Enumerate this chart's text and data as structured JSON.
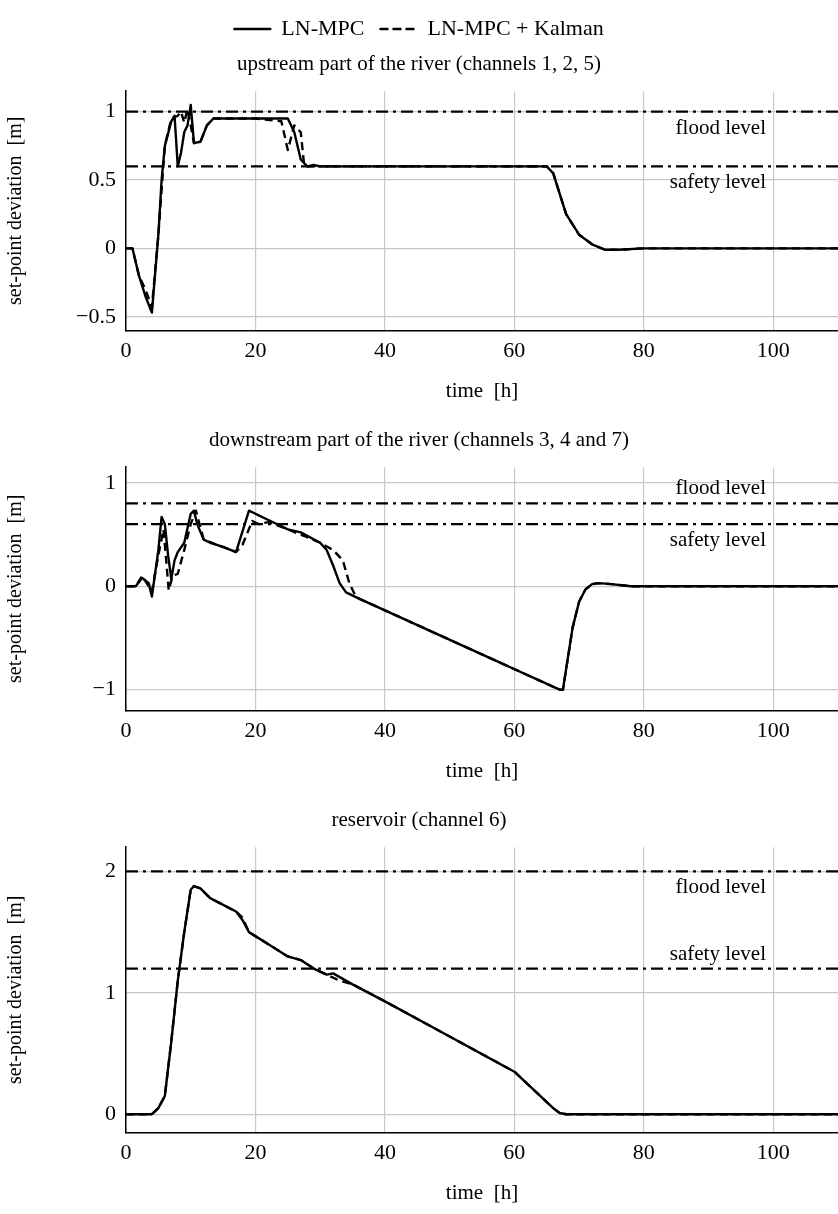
{
  "chart_data": [
    {
      "type": "line",
      "title": "upstream part of the river (channels 1, 2, 5)",
      "xlabel": "time  [h]",
      "ylabel": "set-point deviation  [m]",
      "xlim": [
        0,
        110
      ],
      "xticks": [
        0,
        20,
        40,
        60,
        80,
        100
      ],
      "ylim": [
        -0.6,
        1.15
      ],
      "yticks": [
        -0.5,
        0,
        0.5,
        1
      ],
      "grid": true,
      "legend": "top",
      "marker": "none",
      "ref_lines": [
        {
          "axis": "y",
          "value": 1,
          "label": "flood level",
          "line_style": "dashdot",
          "color": "#000000"
        },
        {
          "axis": "y",
          "value": 0.6,
          "label": "safety level",
          "line_style": "dashdot",
          "color": "#000000"
        }
      ],
      "series": [
        {
          "name": "LN-MPC",
          "color": "#000000",
          "line_style": "solid",
          "x": [
            0,
            1,
            2,
            3,
            4,
            5,
            5.5,
            6,
            7,
            7.5,
            8,
            8.5,
            9,
            9.5,
            10,
            10.5,
            11.5,
            12.5,
            13.5,
            20,
            25,
            26,
            27,
            28,
            29,
            30,
            65,
            66,
            67,
            68,
            70,
            72,
            74,
            76,
            80,
            110
          ],
          "values": [
            0,
            0,
            -0.2,
            -0.35,
            -0.47,
            0.1,
            0.5,
            0.75,
            0.93,
            0.97,
            0.6,
            0.7,
            0.85,
            0.9,
            1.05,
            0.77,
            0.78,
            0.9,
            0.95,
            0.95,
            0.95,
            0.85,
            0.65,
            0.6,
            0.61,
            0.6,
            0.6,
            0.55,
            0.4,
            0.25,
            0.1,
            0.03,
            -0.01,
            -0.01,
            0,
            0
          ]
        },
        {
          "name": "LN-MPC + Kalman",
          "color": "#000000",
          "line_style": "dashed",
          "x": [
            0,
            1,
            2,
            3,
            4,
            5,
            6,
            7,
            8,
            8.5,
            9,
            9.5,
            10,
            10.5,
            11.5,
            12.5,
            13.5,
            20,
            24,
            25,
            26,
            27,
            27.5,
            28,
            30,
            65,
            66,
            67,
            68,
            70,
            72,
            74,
            76,
            80,
            110
          ],
          "values": [
            0,
            0,
            -0.2,
            -0.3,
            -0.43,
            0.1,
            0.75,
            0.95,
            0.97,
            1.0,
            0.92,
            1.02,
            0.9,
            0.77,
            0.78,
            0.9,
            0.95,
            0.95,
            0.93,
            0.72,
            0.9,
            0.85,
            0.62,
            0.6,
            0.6,
            0.6,
            0.55,
            0.4,
            0.25,
            0.1,
            0.03,
            -0.01,
            -0.01,
            0,
            0
          ]
        }
      ]
    },
    {
      "type": "line",
      "title": "downstream part of the river (channels 3, 4 and 7)",
      "xlabel": "time  [h]",
      "ylabel": "set-point deviation  [m]",
      "xlim": [
        0,
        110
      ],
      "xticks": [
        0,
        20,
        40,
        60,
        80,
        100
      ],
      "ylim": [
        -1.2,
        1.15
      ],
      "yticks": [
        -1,
        0,
        1
      ],
      "grid": true,
      "marker": "none",
      "ref_lines": [
        {
          "axis": "y",
          "value": 0.8,
          "label": "flood level",
          "line_style": "dashdot",
          "color": "#000000"
        },
        {
          "axis": "y",
          "value": 0.6,
          "label": "safety level",
          "line_style": "dashdot",
          "color": "#000000"
        }
      ],
      "series": [
        {
          "color": "#000000",
          "line_style": "solid",
          "x": [
            0,
            1.5,
            2.5,
            3.5,
            4,
            5,
            5.5,
            6,
            6.5,
            7,
            7.5,
            8,
            9,
            10,
            10.5,
            11,
            12,
            13,
            15,
            17,
            19,
            22,
            25,
            27,
            30,
            31,
            32,
            33,
            34,
            36,
            67,
            67.5,
            69,
            70,
            71,
            72,
            73,
            75,
            78,
            110
          ],
          "values": [
            0,
            0,
            0.08,
            0.03,
            -0.1,
            0.35,
            0.67,
            0.6,
            0.3,
            0.07,
            0.25,
            0.33,
            0.42,
            0.7,
            0.73,
            0.6,
            0.45,
            0.42,
            0.38,
            0.33,
            0.73,
            0.64,
            0.55,
            0.52,
            0.42,
            0.35,
            0.2,
            0.03,
            -0.06,
            -0.12,
            -1.0,
            -1.0,
            -0.4,
            -0.15,
            -0.03,
            0.02,
            0.03,
            0.02,
            0,
            0
          ]
        },
        {
          "color": "#000000",
          "line_style": "dashed",
          "x": [
            0,
            1.5,
            2.5,
            4,
            5,
            5.8,
            6.6,
            7.2,
            8,
            9,
            10,
            10.8,
            12,
            17,
            18,
            19.5,
            20.5,
            22,
            25,
            30,
            32,
            33.5,
            34.5,
            35.5,
            36,
            67,
            67.5,
            69,
            70,
            71,
            72,
            73,
            75,
            78,
            110
          ],
          "values": [
            0,
            0,
            0.1,
            -0.05,
            0.3,
            0.55,
            -0.04,
            0.1,
            0.12,
            0.35,
            0.6,
            0.73,
            0.45,
            0.33,
            0.4,
            0.63,
            0.6,
            0.62,
            0.55,
            0.42,
            0.35,
            0.25,
            0.03,
            -0.1,
            -0.12,
            -1.0,
            -1.0,
            -0.4,
            -0.15,
            -0.03,
            0.02,
            0.03,
            0.02,
            0,
            0
          ]
        }
      ]
    },
    {
      "type": "line",
      "title": "reservoir (channel 6)",
      "xlabel": "time  [h]",
      "ylabel": "set-point deviation  [m]",
      "xlim": [
        0,
        110
      ],
      "xticks": [
        0,
        20,
        40,
        60,
        80,
        100
      ],
      "ylim": [
        -0.15,
        2.2
      ],
      "yticks": [
        0,
        1,
        2
      ],
      "grid": true,
      "marker": "none",
      "ref_lines": [
        {
          "axis": "y",
          "value": 2,
          "label": "flood level",
          "line_style": "dashdot",
          "color": "#000000"
        },
        {
          "axis": "y",
          "value": 1.2,
          "label": "safety level",
          "line_style": "dashdot",
          "color": "#000000"
        }
      ],
      "series": [
        {
          "color": "#000000",
          "line_style": "solid",
          "x": [
            0,
            4,
            5,
            6,
            7,
            8,
            9,
            10,
            10.5,
            11.5,
            13,
            17,
            18,
            19,
            22,
            25,
            27,
            29,
            31,
            32,
            35,
            40,
            50,
            60,
            66,
            67,
            68,
            110
          ],
          "values": [
            0,
            0,
            0.05,
            0.15,
            0.6,
            1.1,
            1.5,
            1.85,
            1.88,
            1.86,
            1.78,
            1.67,
            1.6,
            1.5,
            1.4,
            1.3,
            1.27,
            1.2,
            1.15,
            1.16,
            1.07,
            0.93,
            0.64,
            0.35,
            0.05,
            0.01,
            0,
            0
          ]
        },
        {
          "color": "#000000",
          "line_style": "dashed",
          "x": [
            0,
            4,
            5,
            6,
            7,
            8,
            9,
            10,
            10.5,
            11.5,
            13,
            17,
            18,
            19,
            22,
            25,
            27,
            29,
            31,
            33,
            35,
            40,
            50,
            60,
            66,
            67,
            68,
            110
          ],
          "values": [
            0,
            0,
            0.05,
            0.15,
            0.6,
            1.1,
            1.5,
            1.85,
            1.88,
            1.86,
            1.78,
            1.67,
            1.62,
            1.5,
            1.4,
            1.3,
            1.27,
            1.2,
            1.15,
            1.1,
            1.07,
            0.93,
            0.64,
            0.35,
            0.05,
            0.01,
            0,
            0
          ]
        }
      ]
    }
  ]
}
